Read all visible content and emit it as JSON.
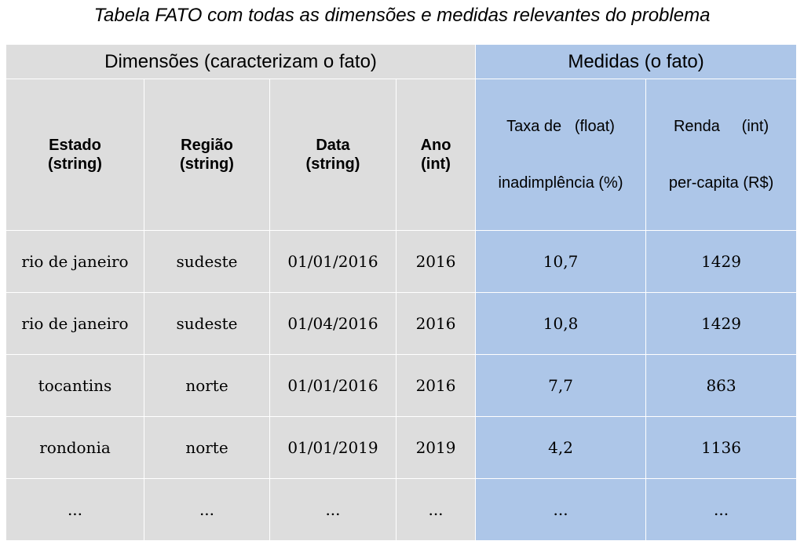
{
  "title": "Tabela FATO com todas as dimensões e medidas relevantes do problema",
  "groups": {
    "dimensions": "Dimensões (caracterizam o fato)",
    "measures": "Medidas (o fato)"
  },
  "columns": [
    {
      "line1": "Estado",
      "line2": "(string)"
    },
    {
      "line1": "Região",
      "line2": "(string)"
    },
    {
      "line1": "Data",
      "line2": "(string)"
    },
    {
      "line1": "Ano",
      "line2": "(int)"
    },
    {
      "line1": "Taxa de   (float)",
      "line2": "inadimplência (%)"
    },
    {
      "line1": "Renda     (int)",
      "line2": "per-capita (R$)"
    }
  ],
  "rows": [
    [
      "rio de janeiro",
      "sudeste",
      "01/01/2016",
      "2016",
      "10,7",
      "1429"
    ],
    [
      "rio de janeiro",
      "sudeste",
      "01/04/2016",
      "2016",
      "10,8",
      "1429"
    ],
    [
      "tocantins",
      "norte",
      "01/01/2016",
      "2016",
      "7,7",
      "863"
    ],
    [
      "rondonia",
      "norte",
      "01/01/2019",
      "2019",
      "4,2",
      "1136"
    ],
    [
      "...",
      "...",
      "...",
      "...",
      "...",
      "..."
    ]
  ],
  "colors": {
    "dimension_bg": "#dddddd",
    "measure_bg": "#adc6e8"
  }
}
